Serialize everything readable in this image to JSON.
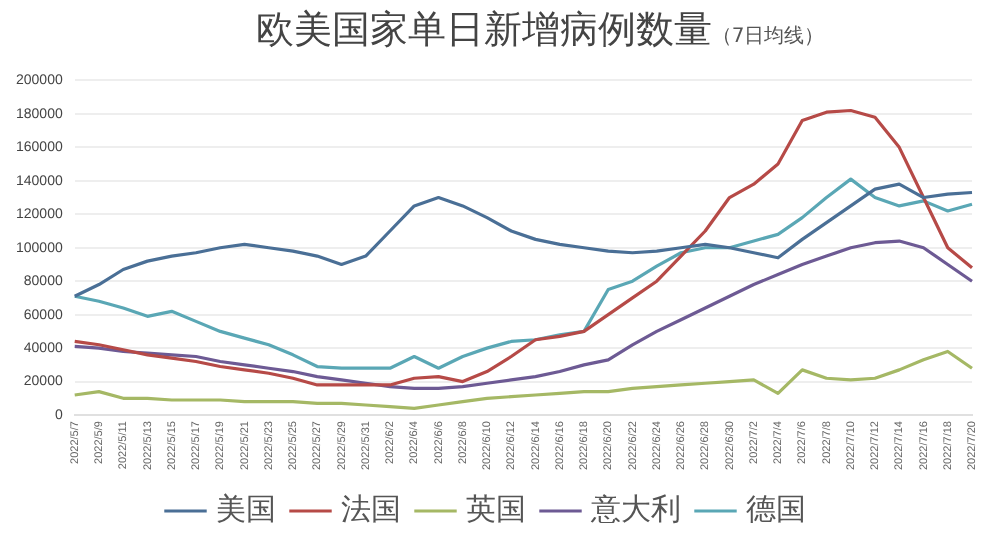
{
  "chart_data": {
    "type": "line",
    "title": "欧美国家单日新增病例数量",
    "subtitle": "（7日均线）",
    "categories": [
      "2022/5/7",
      "2022/5/9",
      "2022/5/11",
      "2022/5/13",
      "2022/5/15",
      "2022/5/17",
      "2022/5/19",
      "2022/5/21",
      "2022/5/23",
      "2022/5/25",
      "2022/5/27",
      "2022/5/29",
      "2022/5/31",
      "2022/6/2",
      "2022/6/4",
      "2022/6/6",
      "2022/6/8",
      "2022/6/10",
      "2022/6/12",
      "2022/6/14",
      "2022/6/16",
      "2022/6/18",
      "2022/6/20",
      "2022/6/22",
      "2022/6/24",
      "2022/6/26",
      "2022/6/28",
      "2022/6/30",
      "2022/7/2",
      "2022/7/4",
      "2022/7/6",
      "2022/7/8",
      "2022/7/10",
      "2022/7/12",
      "2022/7/14",
      "2022/7/16",
      "2022/7/18",
      "2022/7/20"
    ],
    "series": [
      {
        "name": "美国",
        "color": "#4a6f96",
        "values": [
          71000,
          78000,
          87000,
          92000,
          95000,
          97000,
          100000,
          102000,
          100000,
          98000,
          95000,
          90000,
          95000,
          110000,
          125000,
          130000,
          125000,
          118000,
          110000,
          105000,
          102000,
          100000,
          98000,
          97000,
          98000,
          100000,
          102000,
          100000,
          97000,
          94000,
          105000,
          115000,
          125000,
          135000,
          138000,
          130000,
          132000,
          133000
        ]
      },
      {
        "name": "法国",
        "color": "#b64a47",
        "values": [
          44000,
          42000,
          39000,
          36000,
          34000,
          32000,
          29000,
          27000,
          25000,
          22000,
          18000,
          18000,
          18000,
          18000,
          22000,
          23000,
          20000,
          26000,
          35000,
          45000,
          47000,
          50000,
          60000,
          70000,
          80000,
          95000,
          110000,
          130000,
          138000,
          150000,
          176000,
          181000,
          182000,
          178000,
          160000,
          130000,
          100000,
          88000
        ]
      },
      {
        "name": "英国",
        "color": "#a5b865",
        "values": [
          12000,
          14000,
          10000,
          10000,
          9000,
          9000,
          9000,
          8000,
          8000,
          8000,
          7000,
          7000,
          6000,
          5000,
          4000,
          6000,
          8000,
          10000,
          11000,
          12000,
          13000,
          14000,
          14000,
          16000,
          17000,
          18000,
          19000,
          20000,
          21000,
          13000,
          27000,
          22000,
          21000,
          22000,
          27000,
          33000,
          38000,
          28000
        ]
      },
      {
        "name": "意大利",
        "color": "#6d5a94",
        "values": [
          41000,
          40000,
          38000,
          37000,
          36000,
          35000,
          32000,
          30000,
          28000,
          26000,
          23000,
          21000,
          19000,
          17000,
          16000,
          16000,
          17000,
          19000,
          21000,
          23000,
          26000,
          30000,
          33000,
          42000,
          50000,
          57000,
          64000,
          71000,
          78000,
          84000,
          90000,
          95000,
          100000,
          103000,
          104000,
          100000,
          90000,
          80000
        ]
      },
      {
        "name": "德国",
        "color": "#5aa7b5",
        "values": [
          71000,
          68000,
          64000,
          59000,
          62000,
          56000,
          50000,
          46000,
          42000,
          36000,
          29000,
          28000,
          28000,
          28000,
          35000,
          28000,
          35000,
          40000,
          44000,
          45000,
          48000,
          50000,
          75000,
          80000,
          89000,
          97000,
          100000,
          100000,
          104000,
          108000,
          118000,
          130000,
          141000,
          130000,
          125000,
          128000,
          122000,
          126000
        ]
      }
    ],
    "ylim": [
      0,
      200000
    ],
    "yticks": [
      0,
      20000,
      40000,
      60000,
      80000,
      100000,
      120000,
      140000,
      160000,
      180000,
      200000
    ],
    "grid": "y",
    "legend": "bottom",
    "marker": "none",
    "line_style": "solid"
  }
}
